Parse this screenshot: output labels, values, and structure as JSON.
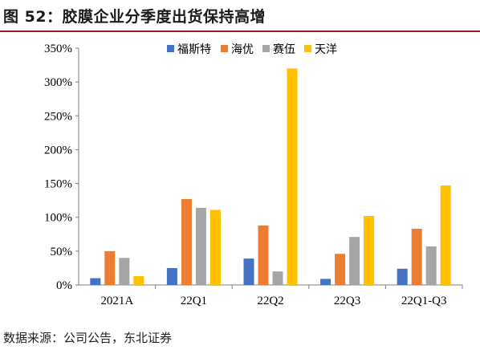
{
  "figure": {
    "title": "图 52：胶膜企业分季度出货保持高增",
    "source": "数据来源：公司公告，东北证券"
  },
  "chart_data": {
    "type": "bar",
    "categories": [
      "2021A",
      "22Q1",
      "22Q2",
      "22Q3",
      "22Q1-Q3"
    ],
    "series": [
      {
        "name": "福斯特",
        "color": "#4472C4",
        "values": [
          10,
          25,
          39,
          9,
          24
        ]
      },
      {
        "name": "海优",
        "color": "#ED7D31",
        "values": [
          50,
          127,
          88,
          46,
          83
        ]
      },
      {
        "name": "赛伍",
        "color": "#A5A5A5",
        "values": [
          40,
          114,
          20,
          71,
          57
        ]
      },
      {
        "name": "天洋",
        "color": "#FFC000",
        "values": [
          13,
          111,
          320,
          102,
          147
        ]
      }
    ],
    "ylim": [
      0,
      350
    ],
    "yticks": [
      0,
      50,
      100,
      150,
      200,
      250,
      300,
      350
    ],
    "ytick_labels": [
      "0%",
      "50%",
      "100%",
      "150%",
      "200%",
      "250%",
      "300%",
      "350%"
    ],
    "y_unit": "%",
    "grid": false,
    "legend_position": "top-center"
  }
}
